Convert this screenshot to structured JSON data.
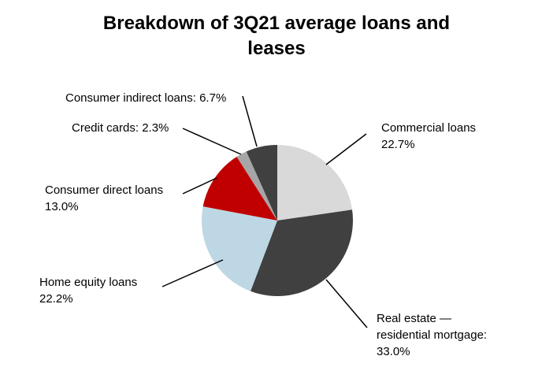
{
  "chart_data": {
    "type": "pie",
    "title": "Breakdown of 3Q21 average loans and leases",
    "categories": [
      "Commercial loans",
      "Real estate — residential mortgage:",
      "Home equity loans",
      "Consumer direct loans",
      "Credit cards:",
      "Consumer indirect loans:"
    ],
    "values": [
      22.7,
      33.0,
      22.2,
      13.0,
      2.3,
      6.7
    ],
    "value_labels": [
      "22.7%",
      "33.0%",
      "22.2%",
      "13.0%",
      "2.3%",
      "6.7%"
    ],
    "colors": [
      "#d9d9d9",
      "#404040",
      "#bdd7e4",
      "#c00000",
      "#a6a6a6",
      "#404040"
    ]
  }
}
